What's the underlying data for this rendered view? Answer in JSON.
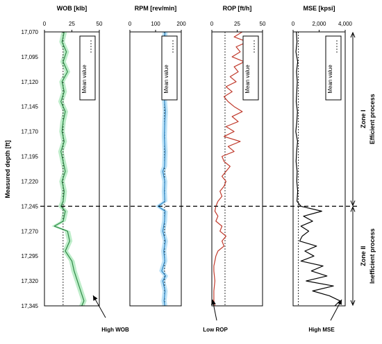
{
  "chart_data": {
    "type": "line",
    "y_axis": {
      "label": "Measured depth [ft]",
      "ticks": [
        "17,070",
        "17,095",
        "17,120",
        "17,145",
        "17,170",
        "17,195",
        "17,220",
        "17,245",
        "17,270",
        "17,295",
        "17,320",
        "17,345"
      ],
      "range": [
        17070,
        17345
      ],
      "inverted": true
    },
    "tracks": [
      {
        "title": "WOB [klb]",
        "ticks": [
          "0",
          "25",
          "50"
        ],
        "xlim": [
          0,
          50
        ],
        "mean_value": 17,
        "mean_label": "Mean value",
        "line_color": "#2e8b46",
        "band_color": "#b7ebc4",
        "depths": [
          17070,
          17080,
          17090,
          17100,
          17110,
          17120,
          17130,
          17140,
          17150,
          17160,
          17170,
          17180,
          17190,
          17200,
          17210,
          17220,
          17230,
          17240,
          17245,
          17250,
          17260,
          17265,
          17270,
          17280,
          17290,
          17300,
          17310,
          17320,
          17330,
          17340,
          17345
        ],
        "values": [
          18,
          16,
          20,
          17,
          21,
          16,
          18,
          15,
          19,
          17,
          16,
          18,
          15,
          17,
          19,
          16,
          18,
          17,
          15,
          19,
          17,
          9,
          21,
          23,
          19,
          25,
          27,
          30,
          33,
          36,
          34
        ],
        "annotation": "High WOB"
      },
      {
        "title": "RPM [rev/min]",
        "ticks": [
          "0",
          "100",
          "200"
        ],
        "xlim": [
          0,
          200
        ],
        "mean_value": 135,
        "mean_label": "Mean value",
        "line_color": "#2f86c4",
        "band_color": "#b5dff6",
        "depths": [
          17070,
          17082,
          17095,
          17110,
          17125,
          17140,
          17150,
          17160,
          17175,
          17190,
          17205,
          17210,
          17220,
          17230,
          17240,
          17245,
          17250,
          17260,
          17270,
          17280,
          17290,
          17300,
          17310,
          17315,
          17320,
          17330,
          17340,
          17345
        ],
        "values": [
          137,
          133,
          136,
          134,
          137,
          135,
          138,
          136,
          134,
          137,
          135,
          128,
          136,
          134,
          136,
          110,
          137,
          135,
          128,
          138,
          132,
          136,
          124,
          139,
          128,
          137,
          133,
          136
        ],
        "annotation": ""
      },
      {
        "title": "ROP [ft/h]",
        "ticks": [
          "0",
          "25",
          "50"
        ],
        "xlim": [
          0,
          50
        ],
        "mean_value": 13,
        "mean_label": "Mean value",
        "line_color": "#c0392b",
        "band_color": "",
        "depths": [
          17070,
          17075,
          17080,
          17085,
          17090,
          17095,
          17100,
          17105,
          17110,
          17115,
          17120,
          17125,
          17130,
          17135,
          17140,
          17145,
          17150,
          17155,
          17160,
          17165,
          17170,
          17175,
          17180,
          17185,
          17190,
          17195,
          17200,
          17205,
          17210,
          17215,
          17220,
          17225,
          17230,
          17235,
          17240,
          17245,
          17250,
          17255,
          17260,
          17265,
          17270,
          17275,
          17280,
          17285,
          17290,
          17295,
          17300,
          17305,
          17310,
          17320,
          17330,
          17340,
          17345
        ],
        "values": [
          30,
          22,
          35,
          24,
          28,
          20,
          32,
          22,
          26,
          18,
          24,
          14,
          20,
          12,
          16,
          22,
          30,
          20,
          26,
          14,
          22,
          12,
          28,
          16,
          22,
          10,
          12,
          18,
          14,
          10,
          14,
          12,
          8,
          10,
          6,
          4,
          3,
          6,
          4,
          10,
          8,
          14,
          10,
          12,
          6,
          4,
          3,
          2,
          2,
          3,
          2,
          2,
          3
        ],
        "annotation": "Low ROP"
      },
      {
        "title": "MSE [kpsi]",
        "ticks": [
          "0",
          "2,000",
          "4,000"
        ],
        "xlim": [
          0,
          4000
        ],
        "mean_value": 400,
        "mean_label": "Mean value",
        "line_color": "#000000",
        "band_color": "",
        "depths": [
          17070,
          17080,
          17090,
          17100,
          17110,
          17120,
          17130,
          17140,
          17150,
          17160,
          17170,
          17180,
          17190,
          17200,
          17210,
          17220,
          17230,
          17240,
          17245,
          17250,
          17255,
          17260,
          17265,
          17270,
          17275,
          17280,
          17285,
          17290,
          17295,
          17300,
          17305,
          17310,
          17315,
          17320,
          17325,
          17330,
          17335,
          17340,
          17345
        ],
        "values": [
          250,
          300,
          220,
          350,
          260,
          320,
          280,
          240,
          330,
          290,
          210,
          340,
          270,
          230,
          310,
          280,
          350,
          300,
          600,
          2200,
          800,
          1500,
          600,
          1200,
          700,
          500,
          1800,
          900,
          1600,
          600,
          2300,
          1400,
          2600,
          1000,
          3100,
          1500,
          2800,
          3600,
          3200
        ],
        "annotation": "High MSE"
      }
    ],
    "zones": [
      {
        "label": "Zone I",
        "description": "Efficient process",
        "range": [
          17070,
          17245
        ]
      },
      {
        "label": "Zone II",
        "description": "Inefficient process",
        "range": [
          17245,
          17345
        ]
      }
    ],
    "boundary_depth": 17245
  }
}
